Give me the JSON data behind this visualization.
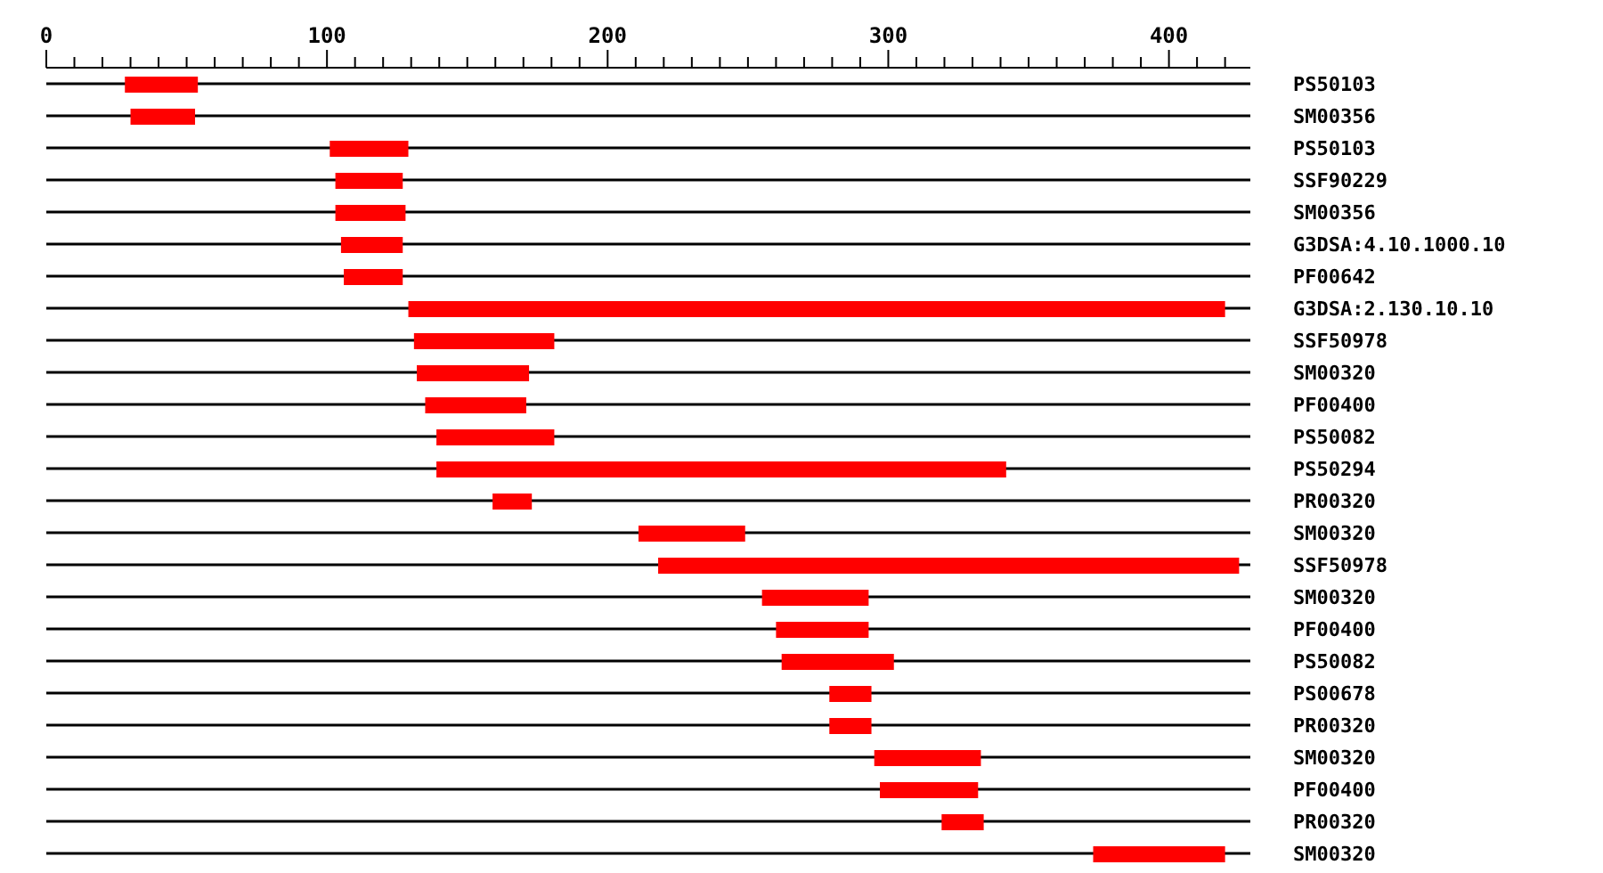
{
  "chart_data": {
    "type": "bar",
    "orientation": "horizontal",
    "grid": "y",
    "categories": [
      "PS50103",
      "SM00356",
      "PS50103",
      "SSF90229",
      "SM00356",
      "G3DSA:4.10.1000.10",
      "PF00642",
      "G3DSA:2.130.10.10",
      "SSF50978",
      "SM00320",
      "PF00400",
      "PS50082",
      "PS50294",
      "PR00320",
      "SM00320",
      "SSF50978",
      "SM00320",
      "PF00400",
      "PS50082",
      "PS00678",
      "PR00320",
      "SM00320",
      "PF00400",
      "PR00320",
      "SM00320"
    ],
    "base": [
      28,
      30,
      101,
      103,
      103,
      105,
      106,
      129,
      131,
      132,
      135,
      139,
      139,
      159,
      211,
      218,
      255,
      260,
      262,
      279,
      279,
      295,
      297,
      319,
      373
    ],
    "values": [
      26,
      23,
      28,
      24,
      25,
      22,
      21,
      291,
      50,
      40,
      36,
      42,
      203,
      14,
      38,
      207,
      38,
      33,
      40,
      15,
      15,
      38,
      35,
      15,
      47
    ],
    "color": "#ff0000",
    "xlim": [
      0,
      429
    ],
    "xticks": [
      0,
      {
        "value": 10,
        "label": null
      },
      {
        "value": 20,
        "label": null
      },
      {
        "value": 30,
        "label": null
      },
      {
        "value": 40,
        "label": null
      },
      {
        "value": 50,
        "label": null
      },
      {
        "value": 60,
        "label": null
      },
      {
        "value": 70,
        "label": null
      },
      {
        "value": 80,
        "label": null
      },
      {
        "value": 90,
        "label": null
      },
      100,
      {
        "value": 110,
        "label": null
      },
      {
        "value": 120,
        "label": null
      },
      {
        "value": 130,
        "label": null
      },
      {
        "value": 140,
        "label": null
      },
      {
        "value": 150,
        "label": null
      },
      {
        "value": 160,
        "label": null
      },
      {
        "value": 170,
        "label": null
      },
      {
        "value": 180,
        "label": null
      },
      {
        "value": 190,
        "label": null
      },
      200,
      {
        "value": 210,
        "label": null
      },
      {
        "value": 220,
        "label": null
      },
      {
        "value": 230,
        "label": null
      },
      {
        "value": 240,
        "label": null
      },
      {
        "value": 250,
        "label": null
      },
      {
        "value": 260,
        "label": null
      },
      {
        "value": 270,
        "label": null
      },
      {
        "value": 280,
        "label": null
      },
      {
        "value": 290,
        "label": null
      },
      300,
      {
        "value": 310,
        "label": null
      },
      {
        "value": 320,
        "label": null
      },
      {
        "value": 330,
        "label": null
      },
      {
        "value": 340,
        "label": null
      },
      {
        "value": 350,
        "label": null
      },
      {
        "value": 360,
        "label": null
      },
      {
        "value": 370,
        "label": null
      },
      {
        "value": 380,
        "label": null
      },
      {
        "value": 390,
        "label": null
      },
      400,
      {
        "value": 410,
        "label": null
      },
      {
        "value": 420,
        "label": null
      }
    ]
  }
}
